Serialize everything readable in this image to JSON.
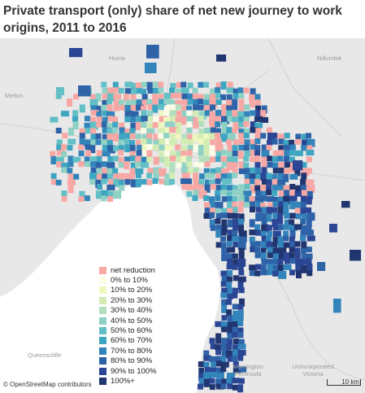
{
  "title": "Private transport (only) share of net new journey to work origins, 2011 to 2016",
  "legend": {
    "items": [
      {
        "label": "net reduction",
        "color": "#f7a7a4"
      },
      {
        "label": "0% to 10%",
        "color": "#fbfbe8"
      },
      {
        "label": "10% to 20%",
        "color": "#eef7bd"
      },
      {
        "label": "20% to 30%",
        "color": "#d3ecb4"
      },
      {
        "label": "30% to 40%",
        "color": "#b3e0bc"
      },
      {
        "label": "40% to 50%",
        "color": "#8fd1c4"
      },
      {
        "label": "50% to 60%",
        "color": "#63bfc6"
      },
      {
        "label": "60% to 70%",
        "color": "#3fa6c2"
      },
      {
        "label": "70% to 80%",
        "color": "#3284ba"
      },
      {
        "label": "80% to 90%",
        "color": "#2e63a8"
      },
      {
        "label": "90% to 100%",
        "color": "#2b4694"
      },
      {
        "label": "100%+",
        "color": "#213570"
      }
    ]
  },
  "places": [
    {
      "name": "Hume"
    },
    {
      "name": "Melton"
    },
    {
      "name": "Nillumbik"
    },
    {
      "name": "Mornington Peninsula"
    },
    {
      "name": "Queenscliffe"
    },
    {
      "name": "Unincorporated Victoria"
    }
  ],
  "attribution": "© OpenStreetMap contributors",
  "scale_label": "10 km"
}
